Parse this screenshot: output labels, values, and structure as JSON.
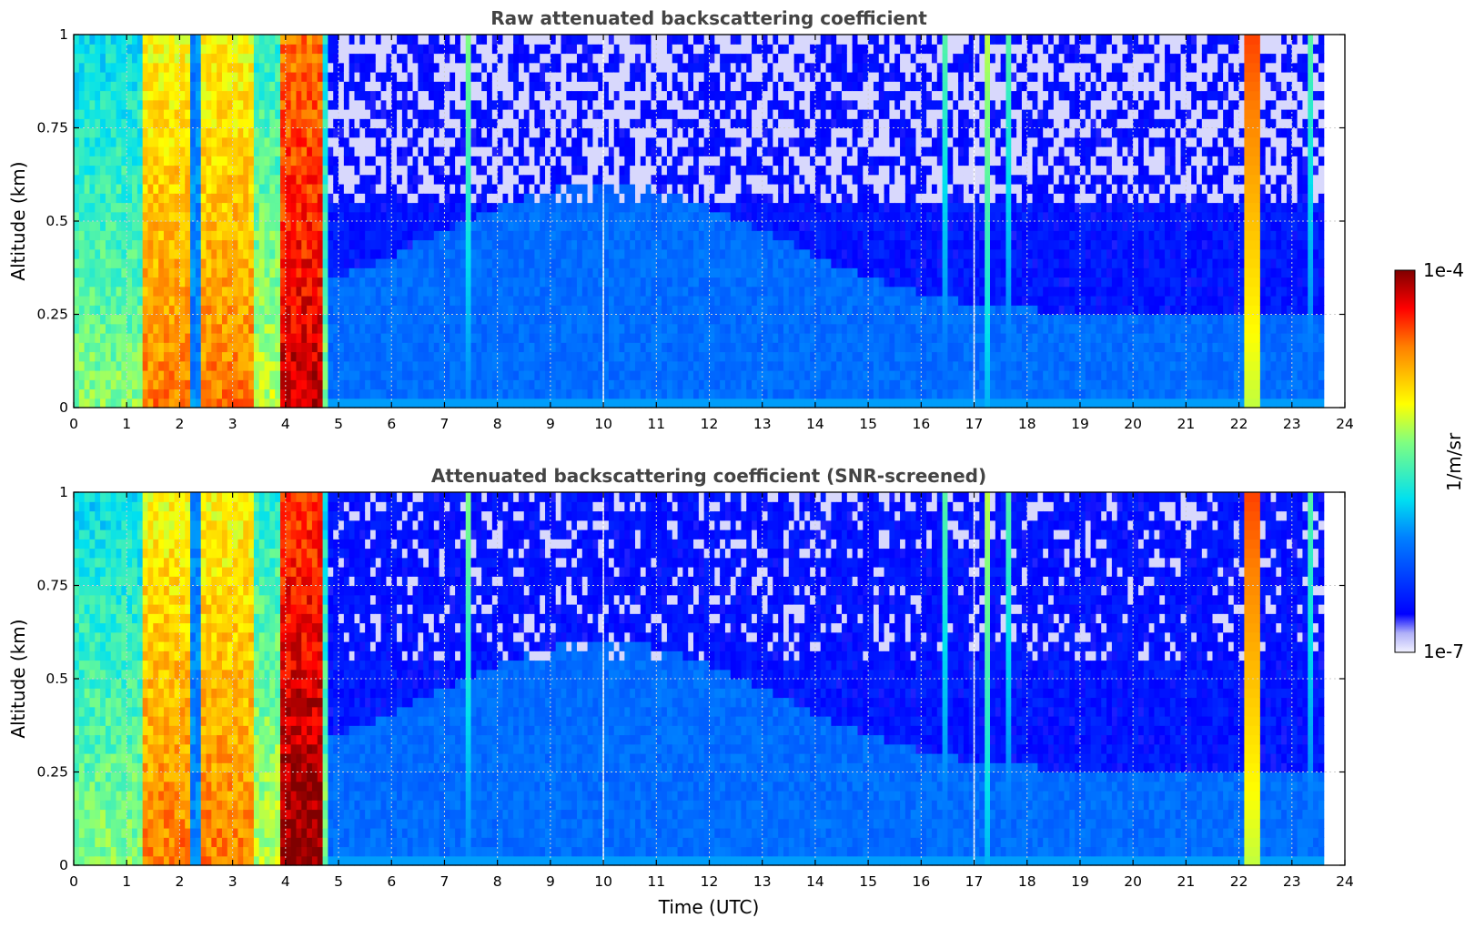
{
  "chart_data": [
    {
      "type": "heatmap",
      "title": "Raw attenuated backscattering coefficient",
      "xlabel": "",
      "ylabel": "Altitude (km)",
      "xlim": [
        0,
        24
      ],
      "ylim": [
        0,
        1
      ],
      "xticks": [
        0,
        1,
        2,
        3,
        4,
        5,
        6,
        7,
        8,
        9,
        10,
        11,
        12,
        13,
        14,
        15,
        16,
        17,
        18,
        19,
        20,
        21,
        22,
        23,
        24
      ],
      "yticks": [
        0,
        0.25,
        0.5,
        0.75,
        1
      ],
      "ytick_labels": [
        "0",
        "0.25",
        "0.5",
        "0.75",
        "1"
      ],
      "grid": true,
      "data_end_time": 23.6,
      "data_gaps": [
        10.0,
        17.0
      ],
      "log_scale": true,
      "features": [
        {
          "t0": 0.0,
          "t1": 1.3,
          "level": 0.55,
          "kind": "aerosol"
        },
        {
          "t0": 1.3,
          "t1": 2.2,
          "level": 0.8,
          "kind": "aerosol"
        },
        {
          "t0": 2.2,
          "t1": 2.4,
          "level": 0.3,
          "kind": "clear"
        },
        {
          "t0": 2.4,
          "t1": 3.4,
          "level": 0.8,
          "kind": "aerosol"
        },
        {
          "t0": 3.4,
          "t1": 3.9,
          "level": 0.6,
          "kind": "aerosol"
        },
        {
          "t0": 3.9,
          "t1": 4.7,
          "level": 0.95,
          "kind": "aerosol"
        },
        {
          "t0": 7.4,
          "t1": 7.5,
          "level": 0.55,
          "kind": "plume"
        },
        {
          "t0": 16.45,
          "t1": 16.55,
          "level": 0.5,
          "kind": "plume"
        },
        {
          "t0": 17.2,
          "t1": 17.3,
          "level": 0.6,
          "kind": "plume"
        },
        {
          "t0": 17.65,
          "t1": 17.75,
          "level": 0.5,
          "kind": "plume"
        },
        {
          "t0": 22.1,
          "t1": 22.4,
          "level": 0.85,
          "kind": "plume"
        },
        {
          "t0": 23.3,
          "t1": 23.45,
          "level": 0.5,
          "kind": "plume"
        }
      ]
    },
    {
      "type": "heatmap",
      "title": "Attenuated backscattering coefficient (SNR-screened)",
      "xlabel": "Time (UTC)",
      "ylabel": "Altitude (km)",
      "xlim": [
        0,
        24
      ],
      "ylim": [
        0,
        1
      ],
      "xticks": [
        0,
        1,
        2,
        3,
        4,
        5,
        6,
        7,
        8,
        9,
        10,
        11,
        12,
        13,
        14,
        15,
        16,
        17,
        18,
        19,
        20,
        21,
        22,
        23,
        24
      ],
      "yticks": [
        0,
        0.25,
        0.5,
        0.75,
        1
      ],
      "ytick_labels": [
        "0",
        "0.25",
        "0.5",
        "0.75",
        "1"
      ],
      "grid": true,
      "data_end_time": 23.6,
      "data_gaps": [
        10.0,
        17.0
      ],
      "log_scale": true,
      "features": [
        {
          "t0": 0.0,
          "t1": 1.3,
          "level": 0.55,
          "kind": "aerosol"
        },
        {
          "t0": 1.3,
          "t1": 2.2,
          "level": 0.8,
          "kind": "aerosol"
        },
        {
          "t0": 2.2,
          "t1": 2.4,
          "level": 0.3,
          "kind": "clear"
        },
        {
          "t0": 2.4,
          "t1": 3.4,
          "level": 0.8,
          "kind": "aerosol"
        },
        {
          "t0": 3.4,
          "t1": 3.9,
          "level": 0.6,
          "kind": "aerosol"
        },
        {
          "t0": 3.9,
          "t1": 4.7,
          "level": 1.0,
          "kind": "aerosol"
        },
        {
          "t0": 7.4,
          "t1": 7.5,
          "level": 0.55,
          "kind": "plume"
        },
        {
          "t0": 16.45,
          "t1": 16.55,
          "level": 0.5,
          "kind": "plume"
        },
        {
          "t0": 17.2,
          "t1": 17.3,
          "level": 0.6,
          "kind": "plume"
        },
        {
          "t0": 17.65,
          "t1": 17.75,
          "level": 0.5,
          "kind": "plume"
        },
        {
          "t0": 22.1,
          "t1": 22.4,
          "level": 0.85,
          "kind": "plume"
        },
        {
          "t0": 23.3,
          "t1": 23.45,
          "level": 0.5,
          "kind": "plume"
        }
      ]
    }
  ],
  "colorbar": {
    "label": "1/m/sr",
    "max_label": "1e-4",
    "min_label": "1e-7",
    "colormap": "jet",
    "min_color": "#f2f2ff",
    "max_color": "#800000"
  }
}
